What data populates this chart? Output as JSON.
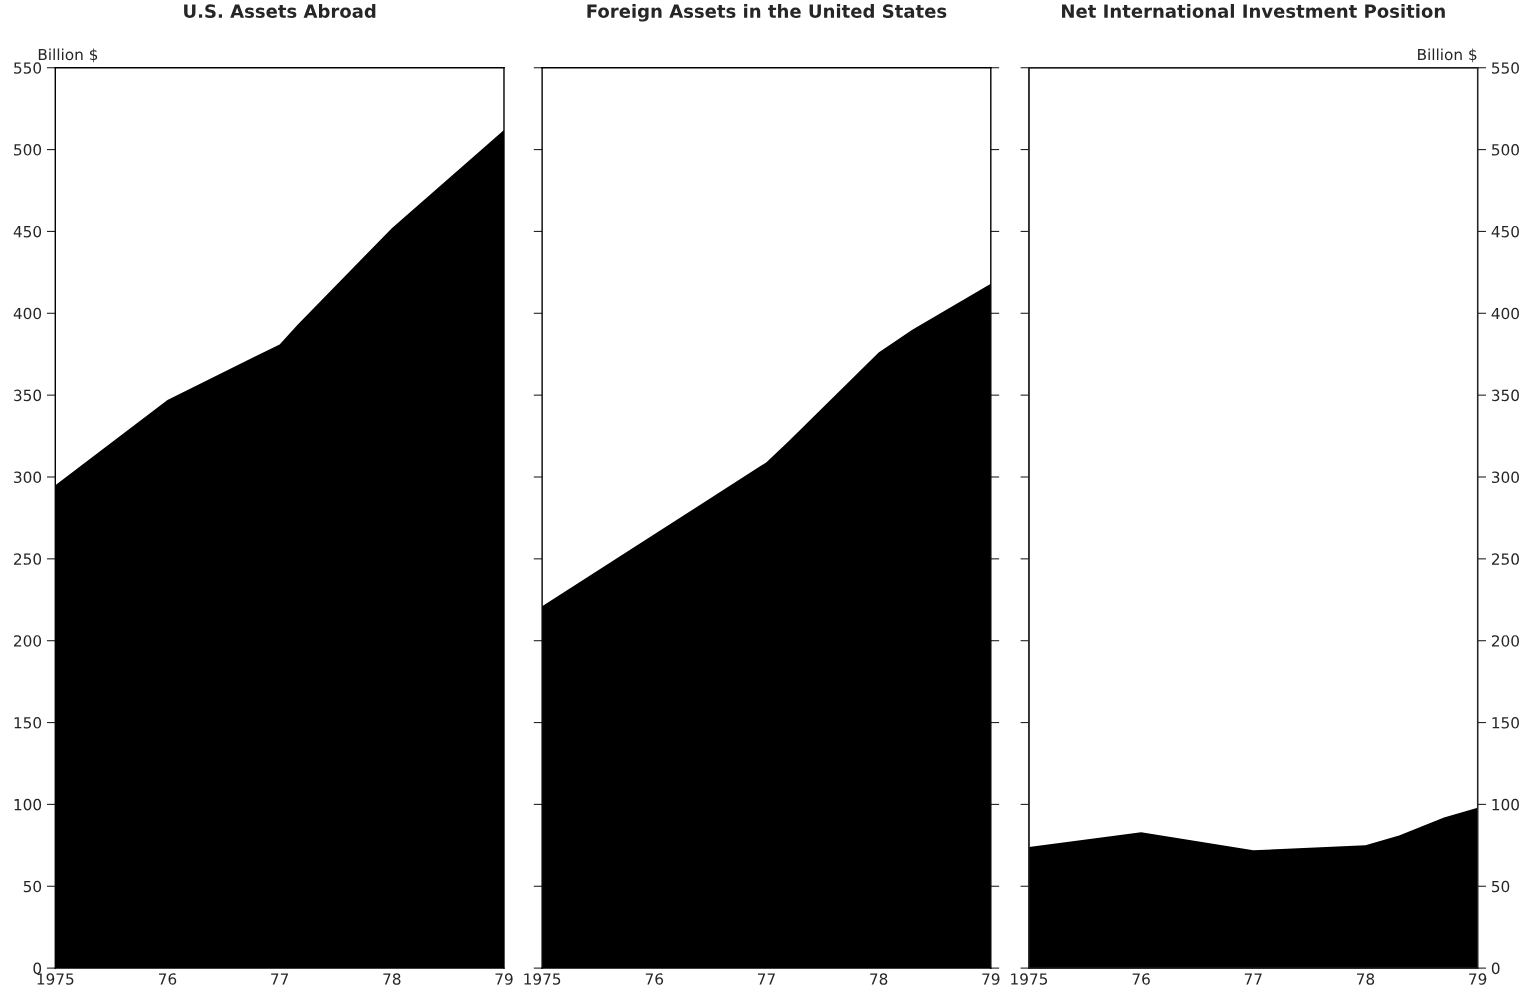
{
  "chart_data": [
    {
      "type": "area",
      "title": "U.S. Assets Abroad",
      "ylabel": "Billion $",
      "xlim": [
        1975,
        1979
      ],
      "xticks": [
        {
          "value": 1975,
          "label": "1975"
        },
        {
          "value": 1976,
          "label": "76"
        },
        {
          "value": 1977,
          "label": "77"
        },
        {
          "value": 1978,
          "label": "78"
        },
        {
          "value": 1979,
          "label": "79"
        }
      ],
      "ylim": [
        0,
        550
      ],
      "yticks": [
        0,
        50,
        100,
        150,
        200,
        250,
        300,
        350,
        400,
        450,
        500,
        550
      ],
      "series": [
        {
          "color": "#000000",
          "x": [
            1975,
            1976,
            1977,
            1977.16,
            1978,
            1979
          ],
          "values": [
            295,
            347,
            381,
            393,
            452,
            512
          ]
        }
      ]
    },
    {
      "type": "area",
      "title": "Foreign Assets in the United States",
      "tick_labels": "x",
      "xlim": [
        1975,
        1979
      ],
      "xticks": [
        {
          "value": 1975,
          "label": "1975"
        },
        {
          "value": 1976,
          "label": "76"
        },
        {
          "value": 1977,
          "label": "77"
        },
        {
          "value": 1978,
          "label": "78"
        },
        {
          "value": 1979,
          "label": "79"
        }
      ],
      "ylim": [
        0,
        550
      ],
      "yticks": [
        0,
        50,
        100,
        150,
        200,
        250,
        300,
        350,
        400,
        450,
        500,
        550
      ],
      "series": [
        {
          "color": "#000000",
          "x": [
            1975,
            1976,
            1977,
            1977.2,
            1978,
            1978.3,
            1979
          ],
          "values": [
            221,
            265,
            309,
            322,
            376,
            390,
            418
          ]
        }
      ]
    },
    {
      "type": "area",
      "title": "Net International Investment Position",
      "y2label": "Billion $",
      "xlim": [
        1975,
        1979
      ],
      "xticks": [
        {
          "value": 1975,
          "label": "1975"
        },
        {
          "value": 1976,
          "label": "76"
        },
        {
          "value": 1977,
          "label": "77"
        },
        {
          "value": 1978,
          "label": "78"
        },
        {
          "value": 1979,
          "label": "79"
        }
      ],
      "y2lim": [
        0,
        550
      ],
      "y2ticks": [
        0,
        50,
        100,
        150,
        200,
        250,
        300,
        350,
        400,
        450,
        500,
        550
      ],
      "series": [
        {
          "color": "#000000",
          "axis": "y2",
          "x": [
            1975,
            1976,
            1977,
            1978,
            1978.3,
            1978.7,
            1979
          ],
          "values": [
            74,
            83,
            72,
            75,
            81,
            92,
            98
          ]
        }
      ]
    }
  ]
}
